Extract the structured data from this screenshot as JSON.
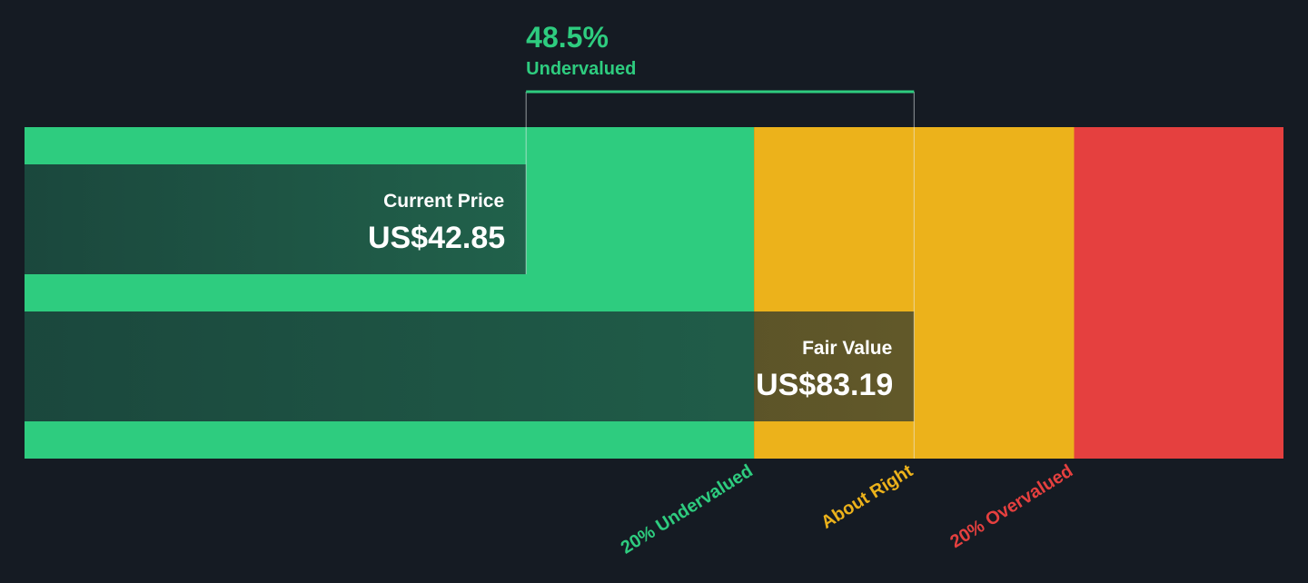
{
  "chart_data": {
    "type": "valuation",
    "xlim": [
      -9.3,
      121.6
    ],
    "annotation": {
      "value": 48.5,
      "label": "48.5%",
      "text": "Undervalued"
    },
    "series": [
      {
        "name": "Current Price",
        "values": [
          42.85
        ],
        "value_labels": [
          "US$42.85"
        ]
      },
      {
        "name": "Fair Value",
        "values": [
          83.19
        ],
        "value_labels": [
          "US$83.19"
        ]
      }
    ],
    "zones": [
      {
        "label": "20% Undervalued",
        "color": "#2ecc7f",
        "end": 66.55
      },
      {
        "label": "About Right",
        "color": "#ecb21b",
        "end": 99.83
      },
      {
        "label": "20% Overvalued",
        "color": "#e5403f",
        "end": 121.6
      }
    ]
  }
}
